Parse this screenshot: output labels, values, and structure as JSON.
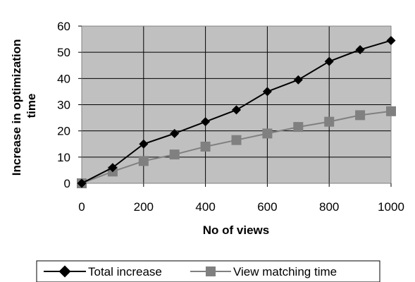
{
  "chart_data": {
    "type": "line",
    "title": "",
    "xlabel": "No of views",
    "ylabel_lines": [
      "Increase in optimization",
      "time"
    ],
    "xlim": [
      0,
      1000
    ],
    "ylim": [
      0,
      60
    ],
    "x_ticks": [
      0,
      200,
      400,
      600,
      800,
      1000
    ],
    "y_ticks": [
      0,
      10,
      20,
      30,
      40,
      50,
      60
    ],
    "grid": true,
    "plot_background": "#c0c0c0",
    "legend_position": "bottom",
    "x": [
      0,
      100,
      200,
      300,
      400,
      500,
      600,
      700,
      800,
      900,
      1000
    ],
    "series": [
      {
        "name": "Total increase",
        "marker": "diamond",
        "color": "#000000",
        "values": [
          0,
          6,
          15,
          19,
          23.5,
          28,
          35,
          39.5,
          46.5,
          51,
          54.5
        ]
      },
      {
        "name": "View matching time",
        "marker": "square",
        "color": "#808080",
        "values": [
          0,
          4.5,
          8.5,
          11,
          14,
          16.5,
          19,
          21.5,
          23.5,
          26,
          27.5
        ]
      }
    ]
  }
}
